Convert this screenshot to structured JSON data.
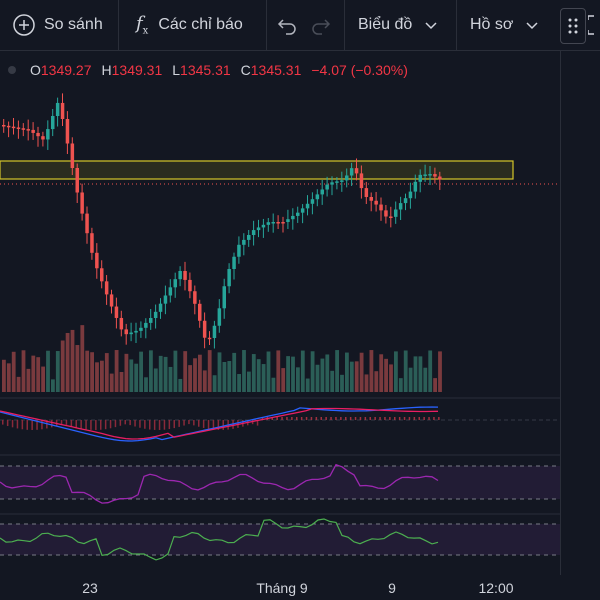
{
  "toolbar": {
    "compare_label": "So sánh",
    "indicators_label": "Các chỉ báo",
    "chart_type_label": "Biểu đồ",
    "profile_label": "Hồ sơ"
  },
  "ohlc": {
    "open_label": "O",
    "open": "1349.27",
    "high_label": "H",
    "high": "1349.31",
    "low_label": "L",
    "low": "1345.31",
    "close_label": "C",
    "close": "1345.31",
    "change": "−4.07 (−0.30%)"
  },
  "x_axis": {
    "labels": [
      "23",
      "Tháng 9",
      "9",
      "12:00"
    ]
  },
  "colors": {
    "up": "#26a69a",
    "down": "#ef5350",
    "zone": "#d4c52a",
    "macd_line": "#2962ff",
    "signal_line": "#e91e63",
    "rsi": "#9c27b0",
    "bg": "#131722"
  },
  "icons": {
    "compare": "plus-circle-icon",
    "indicators": "fx-icon",
    "undo": "undo-icon",
    "redo": "redo-icon",
    "chart_chevron": "chevron-down-icon",
    "profile_chevron": "chevron-down-icon",
    "drag": "drag-handle-icon",
    "fullscreen": "fullscreen-icon"
  }
}
